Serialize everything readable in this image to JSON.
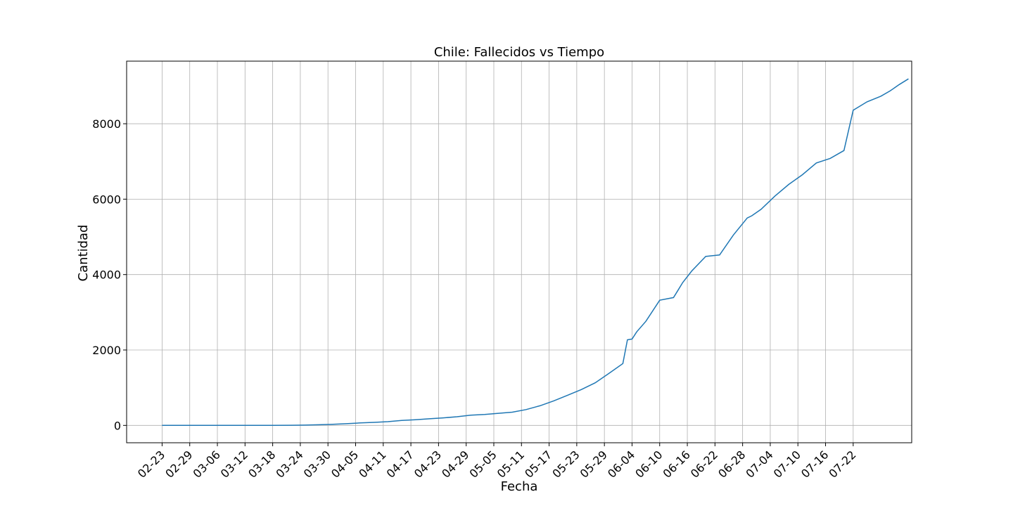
{
  "chart_data": {
    "type": "line",
    "title": "Chile: Fallecidos vs Tiempo",
    "xlabel": "Fecha",
    "ylabel": "Cantidad",
    "grid": true,
    "line_color": "#1f77b4",
    "x_ticks": [
      "02-23",
      "02-29",
      "03-06",
      "03-12",
      "03-18",
      "03-24",
      "03-30",
      "04-05",
      "04-11",
      "04-17",
      "04-23",
      "04-29",
      "05-05",
      "05-11",
      "05-17",
      "05-23",
      "05-29",
      "06-04",
      "06-10",
      "06-16",
      "06-22",
      "06-28",
      "07-04",
      "07-10",
      "07-16",
      "07-22"
    ],
    "y_ticks": [
      0,
      2000,
      4000,
      6000,
      8000
    ],
    "xlim": [
      -7.7,
      162.7
    ],
    "ylim": [
      -460,
      9660
    ],
    "series": [
      {
        "x": [
          0,
          6,
          12,
          18,
          24,
          28,
          31,
          34,
          37,
          40,
          43,
          46,
          49,
          52,
          55,
          58,
          61,
          64,
          67,
          70,
          73,
          76,
          79,
          82,
          85,
          88,
          91,
          94,
          97,
          100,
          101,
          102,
          103,
          105,
          108,
          111,
          112,
          113,
          115,
          118,
          121,
          124,
          127,
          128,
          130,
          133,
          136,
          139,
          142,
          145,
          148,
          150,
          153,
          156,
          158,
          160,
          162
        ],
        "y": [
          0,
          0,
          1,
          1,
          2,
          4,
          8,
          18,
          30,
          45,
          65,
          80,
          100,
          130,
          150,
          175,
          200,
          230,
          270,
          290,
          320,
          350,
          420,
          520,
          650,
          800,
          950,
          1130,
          1380,
          1640,
          2270,
          2290,
          2480,
          2760,
          3320,
          3390,
          3590,
          3790,
          4100,
          4480,
          4520,
          5050,
          5500,
          5560,
          5730,
          6080,
          6390,
          6650,
          6960,
          7080,
          7290,
          8360,
          8580,
          8730,
          8870,
          9040,
          9190
        ]
      }
    ]
  }
}
